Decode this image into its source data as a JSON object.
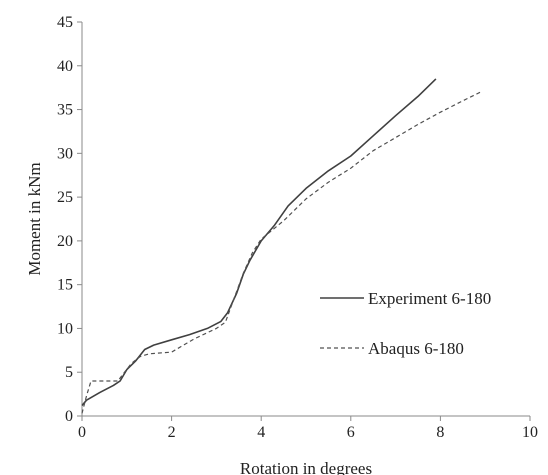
{
  "chart_data": {
    "type": "line",
    "xlabel": "Rotation in degrees",
    "ylabel": "Moment in kNm",
    "xlim": [
      0,
      10
    ],
    "ylim": [
      0,
      45
    ],
    "xticks": [
      0,
      2,
      4,
      6,
      8,
      10
    ],
    "yticks": [
      0,
      5,
      10,
      15,
      20,
      25,
      30,
      35,
      40,
      45
    ],
    "grid": false,
    "legend_position": "lower-right",
    "series": [
      {
        "name": "Experiment 6-180",
        "style": "solid",
        "color": "#404040",
        "x": [
          0,
          0.1,
          0.4,
          0.7,
          0.85,
          1.0,
          1.2,
          1.4,
          1.6,
          2.0,
          2.4,
          2.8,
          3.1,
          3.25,
          3.45,
          3.6,
          3.75,
          4.0,
          4.3,
          4.6,
          5.0,
          5.5,
          6.0,
          6.5,
          7.0,
          7.5,
          7.9
        ],
        "y": [
          1.2,
          1.8,
          2.7,
          3.5,
          4.0,
          5.3,
          6.3,
          7.6,
          8.1,
          8.7,
          9.3,
          10.0,
          10.8,
          11.8,
          14.0,
          16.2,
          17.8,
          20.0,
          21.8,
          24.0,
          26.0,
          28.0,
          29.7,
          32.0,
          34.3,
          36.5,
          38.5
        ]
      },
      {
        "name": "Abaqus 6-180",
        "style": "dashed",
        "color": "#505050",
        "x": [
          0,
          0.1,
          0.2,
          0.8,
          1.1,
          1.3,
          1.5,
          2.0,
          2.5,
          3.0,
          3.2,
          3.4,
          3.6,
          3.8,
          4.0,
          4.5,
          5.0,
          5.5,
          6.0,
          6.5,
          7.0,
          7.5,
          8.0,
          8.5,
          8.9
        ],
        "y": [
          0.3,
          2.3,
          4.0,
          4.0,
          6.0,
          6.8,
          7.1,
          7.3,
          8.8,
          10.0,
          10.7,
          13.5,
          16.3,
          18.6,
          20.2,
          22.3,
          24.8,
          26.7,
          28.3,
          30.3,
          31.8,
          33.3,
          34.7,
          36.0,
          37.0
        ]
      }
    ]
  }
}
